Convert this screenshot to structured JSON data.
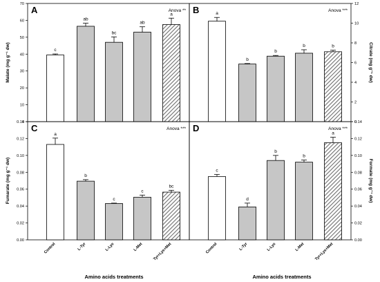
{
  "colors": {
    "control": "#ffffff",
    "amino": "#c6c6c6",
    "combo_hatch": "#808080",
    "stroke": "#000000"
  },
  "x_title": "Amino acids treatments",
  "chart_data": [
    {
      "type": "bar",
      "panel": "A",
      "anova": "Anova **",
      "ylabel": "Malate (mg g⁻¹ dw)",
      "y_side": "left",
      "ylim": [
        0,
        70
      ],
      "yticks": [
        0,
        10,
        20,
        30,
        40,
        50,
        60,
        70
      ],
      "categories": [
        "Control",
        "L-Tyr",
        "L-Lys",
        "L-Met",
        "Tyr+Lys+Met"
      ],
      "values": [
        39.5,
        56.5,
        47,
        53,
        57.5
      ],
      "errors": [
        0.6,
        1.8,
        3.2,
        3.2,
        3.8
      ],
      "letters": [
        "c",
        "ab",
        "bc",
        "ab",
        "a"
      ]
    },
    {
      "type": "bar",
      "panel": "B",
      "anova": "Anova ***",
      "ylabel": "Citrate (mg g⁻¹ dw)",
      "y_side": "right",
      "ylim": [
        0,
        12
      ],
      "yticks": [
        0,
        2,
        4,
        6,
        8,
        10,
        12
      ],
      "categories": [
        "Control",
        "L-Tyr",
        "L-Lys",
        "L-Met",
        "Tyr+Lys+Met"
      ],
      "values": [
        10.2,
        5.85,
        6.65,
        6.95,
        7.1
      ],
      "errors": [
        0.38,
        0.05,
        0.07,
        0.35,
        0.15
      ],
      "letters": [
        "a",
        "b",
        "b",
        "b",
        "b"
      ]
    },
    {
      "type": "bar",
      "panel": "C",
      "anova": "Anova ***",
      "ylabel": "Fumarate (mg g⁻¹ dw)",
      "y_side": "left",
      "ylim": [
        0,
        0.14
      ],
      "yticks": [
        "0.00",
        "0.02",
        "0.04",
        "0.06",
        "0.08",
        "0.10",
        "0.12",
        "0.14"
      ],
      "categories": [
        "Control",
        "L-Tyr",
        "L-Lys",
        "L-Met",
        "Tyr+Lys+Met"
      ],
      "values": [
        0.113,
        0.0695,
        0.043,
        0.0505,
        0.0565
      ],
      "errors": [
        0.0075,
        0.0018,
        0.0005,
        0.0025,
        0.0022
      ],
      "letters": [
        "a",
        "b",
        "c",
        "c",
        "bc"
      ]
    },
    {
      "type": "bar",
      "panel": "D",
      "anova": "Anova ***",
      "ylabel": "Formate (mg g⁻¹ dw)",
      "y_side": "right",
      "ylim": [
        0,
        0.14
      ],
      "yticks": [
        "0.00",
        "0.02",
        "0.04",
        "0.06",
        "0.08",
        "0.10",
        "0.12",
        "0.14"
      ],
      "categories": [
        "Control",
        "L-Tyr",
        "L-Lys",
        "L-Met",
        "Tyr+Lys+Met"
      ],
      "values": [
        0.075,
        0.039,
        0.094,
        0.092,
        0.115
      ],
      "errors": [
        0.0025,
        0.0045,
        0.006,
        0.0025,
        0.0065
      ],
      "letters": [
        "c",
        "d",
        "b",
        "b",
        "a"
      ]
    }
  ]
}
